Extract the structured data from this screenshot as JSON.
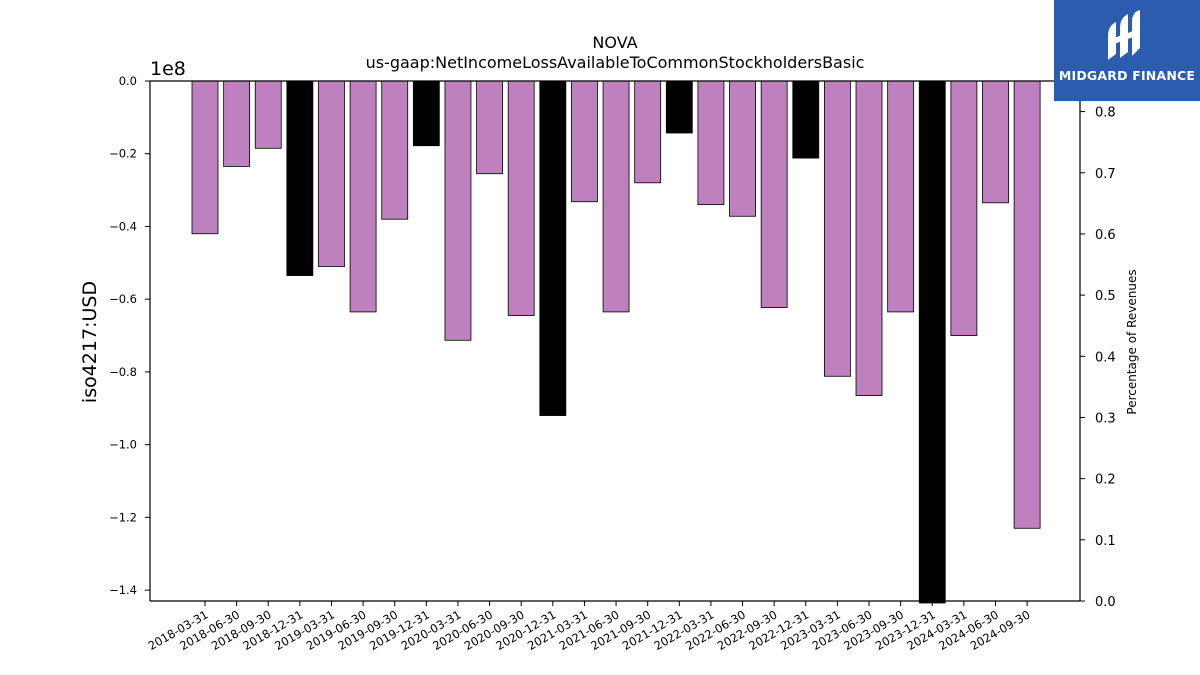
{
  "chart_data": {
    "type": "bar",
    "title": "NOVA",
    "subtitle": "us-gaap:NetIncomeLossAvailableToCommonStockholdersBasic",
    "ylabel": "iso4217:USD",
    "y2label": "Percentage of Revenues",
    "y_scale_label": "1e8",
    "ylim": [
      -1.43,
      0.0
    ],
    "y2lim": [
      0.0,
      0.85
    ],
    "yticks": [
      "0.0",
      "−0.2",
      "−0.4",
      "−0.6",
      "−0.8",
      "−1.0",
      "−1.2",
      "−1.4"
    ],
    "y2ticks": [
      "0.0",
      "0.1",
      "0.2",
      "0.3",
      "0.4",
      "0.5",
      "0.6",
      "0.7",
      "0.8"
    ],
    "grid": false,
    "legend": "none",
    "colors": {
      "quarterly": "#bf80bf",
      "annual": "#000000",
      "edge": "#000000"
    },
    "categories": [
      "2018-03-31",
      "2018-06-30",
      "2018-09-30",
      "2018-12-31",
      "2019-03-31",
      "2019-06-30",
      "2019-09-30",
      "2019-12-31",
      "2020-03-31",
      "2020-06-30",
      "2020-09-30",
      "2020-12-31",
      "2021-03-31",
      "2021-06-30",
      "2021-09-30",
      "2021-12-31",
      "2022-03-31",
      "2022-06-30",
      "2022-09-30",
      "2022-12-31",
      "2023-03-31",
      "2023-06-30",
      "2023-09-30",
      "2023-12-31",
      "2024-03-31",
      "2024-06-30",
      "2024-09-30"
    ],
    "values": [
      -0.42,
      -0.235,
      -0.185,
      -0.535,
      -0.51,
      -0.635,
      -0.38,
      -0.178,
      -0.713,
      -0.255,
      -0.645,
      -0.92,
      -0.332,
      -0.635,
      -0.28,
      -0.143,
      -0.34,
      -0.372,
      -0.623,
      -0.212,
      -0.812,
      -0.865,
      -0.635,
      -1.45,
      -0.7,
      -0.335,
      -1.23
    ],
    "is_annual": [
      false,
      false,
      false,
      true,
      false,
      false,
      false,
      true,
      false,
      false,
      false,
      true,
      false,
      false,
      false,
      true,
      false,
      false,
      false,
      true,
      false,
      false,
      false,
      true,
      false,
      false,
      false
    ]
  },
  "logo": {
    "text": "MIDGARD FINANCE",
    "icon": "midgard-logo-icon"
  }
}
